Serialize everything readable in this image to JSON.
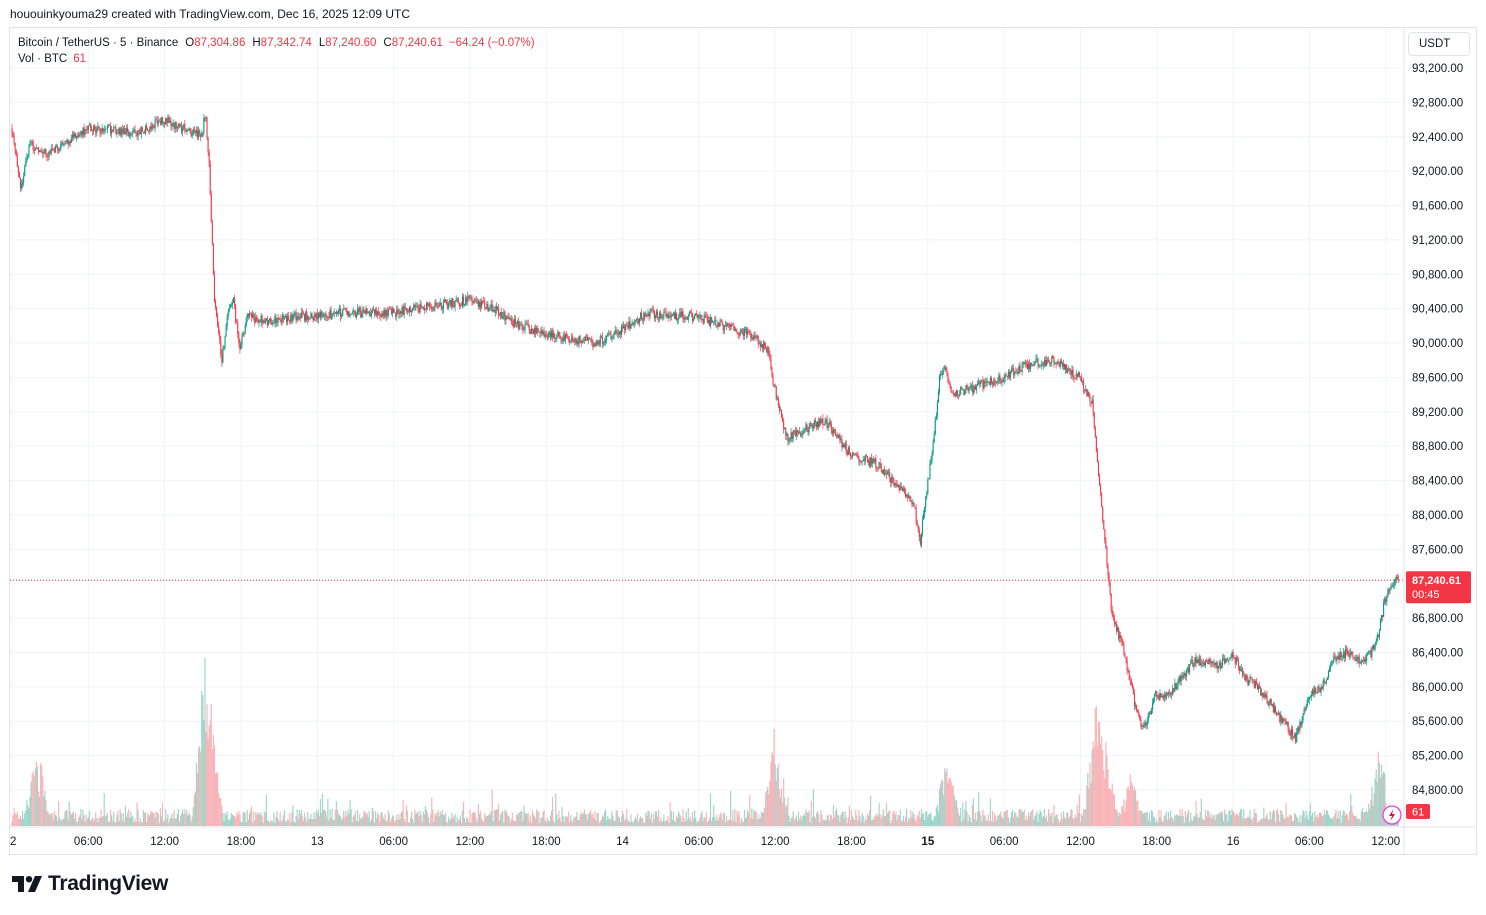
{
  "caption": "hououinkyouma29 created with TradingView.com, Dec 16, 2025 12:09 UTC",
  "legend": {
    "symbol": "Bitcoin / TetherUS · 5 · Binance",
    "o_label": "O",
    "o_value": "87,304.86",
    "h_label": "H",
    "h_value": "87,342.74",
    "l_label": "L",
    "l_value": "87,240.60",
    "c_label": "C",
    "c_value": "87,240.61",
    "change": "−64.24 (−0.07%)",
    "vol_label": "Vol · BTC",
    "vol_value": "61"
  },
  "currency": "USDT",
  "price_tag": {
    "price": "87,240.61",
    "countdown": "00:45"
  },
  "volume_badge": "61",
  "brand": "TradingView",
  "colors": {
    "up": "#089981",
    "down": "#f23645",
    "grid": "#f0f3fa",
    "text": "#131722"
  },
  "chart_data": {
    "type": "candlestick",
    "title": "Bitcoin / TetherUS · 5 · Binance",
    "y_ticks": [
      93200,
      92800,
      92400,
      92000,
      91600,
      91200,
      90800,
      90400,
      90000,
      89600,
      89200,
      88800,
      88400,
      88000,
      87600,
      86800,
      86400,
      86000,
      85600,
      85200,
      84800
    ],
    "y_tick_labels": [
      "93,200.00",
      "92,800.00",
      "92,400.00",
      "92,000.00",
      "91,600.00",
      "91,200.00",
      "90,800.00",
      "90,400.00",
      "90,000.00",
      "89,600.00",
      "89,200.00",
      "88,800.00",
      "88,400.00",
      "88,000.00",
      "87,600.00",
      "86,800.00",
      "86,400.00",
      "86,000.00",
      "85,600.00",
      "85,200.00",
      "84,800.00"
    ],
    "ylim": [
      84550,
      93480
    ],
    "x_tick_labels": [
      "2",
      "06:00",
      "12:00",
      "18:00",
      "13",
      "06:00",
      "12:00",
      "18:00",
      "14",
      "06:00",
      "12:00",
      "18:00",
      "15",
      "06:00",
      "12:00",
      "18:00",
      "16",
      "06:00",
      "12:00"
    ],
    "x_tick_hours": [
      0,
      6,
      12,
      18,
      24,
      30,
      36,
      42,
      48,
      54,
      60,
      66,
      72,
      78,
      84,
      90,
      96,
      102,
      108
    ],
    "xlim_hours": [
      0,
      109.2
    ],
    "interval_minutes": 5,
    "last_price": 87240.61,
    "path_hours": [
      0,
      0.8,
      1.5,
      3,
      6,
      10,
      12,
      15,
      15.3,
      15.6,
      16,
      16.6,
      17,
      17.5,
      18,
      18.5,
      20,
      22,
      26,
      30,
      34,
      36,
      38,
      40,
      42,
      46,
      48,
      50,
      54,
      58,
      59,
      59.5,
      60,
      61,
      64,
      66,
      68,
      70,
      71,
      71.5,
      72,
      72.5,
      73,
      73.5,
      74,
      76,
      78,
      80,
      82,
      84,
      85,
      86.5,
      87.5,
      88.5,
      89,
      90,
      91,
      92,
      93,
      94,
      95,
      96,
      97,
      98,
      99,
      100,
      101,
      102,
      103,
      104,
      105,
      106,
      107,
      107.5,
      108,
      108.6,
      109
    ],
    "path_prices": [
      92500,
      91800,
      92300,
      92200,
      92500,
      92450,
      92600,
      92400,
      92700,
      92000,
      90500,
      89800,
      90300,
      90500,
      89900,
      90300,
      90250,
      90300,
      90350,
      90350,
      90450,
      90500,
      90400,
      90200,
      90100,
      90000,
      90150,
      90350,
      90300,
      90100,
      90000,
      89900,
      89500,
      88900,
      89100,
      88700,
      88600,
      88300,
      88100,
      87700,
      88300,
      88800,
      89600,
      89700,
      89400,
      89500,
      89600,
      89750,
      89800,
      89600,
      89300,
      86900,
      86400,
      85700,
      85500,
      85900,
      85900,
      86100,
      86300,
      86300,
      86250,
      86400,
      86100,
      86000,
      85800,
      85600,
      85400,
      85900,
      86000,
      86300,
      86400,
      86300,
      86400,
      86600,
      87000,
      87200,
      87240.61
    ],
    "volume_spike_hours": [
      2,
      15.3,
      15.5,
      60,
      73.5,
      85.3,
      86,
      88,
      107.5
    ],
    "volume_spike_heights": [
      85,
      200,
      125,
      110,
      75,
      135,
      90,
      60,
      85
    ]
  }
}
